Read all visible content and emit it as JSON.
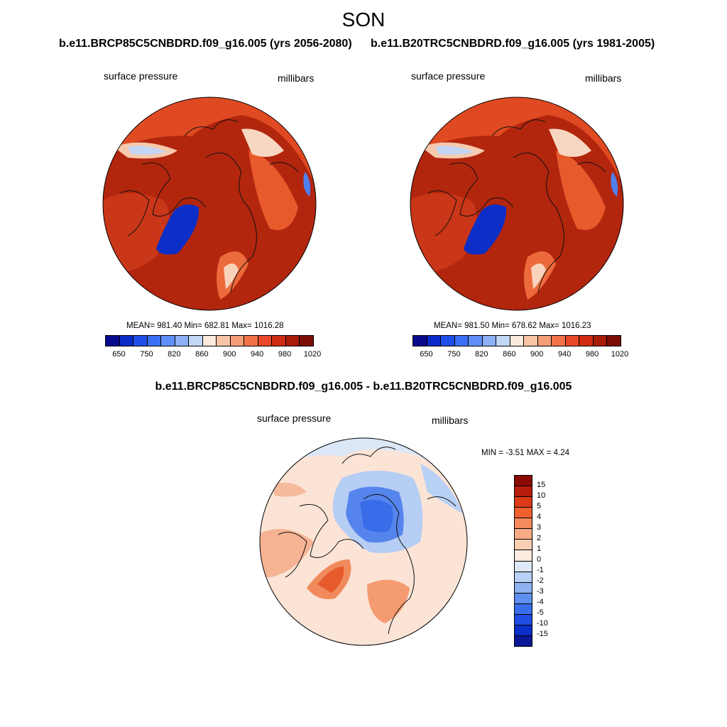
{
  "title": "SON",
  "panels": [
    {
      "title": "b.e11.BRCP85C5CNBDRD.f09_g16.005 (yrs 2056-2080)",
      "var_label": "surface pressure",
      "units_label": "millibars",
      "stats": "MEAN= 981.40  Min= 682.81  Max= 1016.28"
    },
    {
      "title": "b.e11.B20TRC5CNBDRD.f09_g16.005 (yrs 1981-2005)",
      "var_label": "surface pressure",
      "units_label": "millibars",
      "stats": "MEAN= 981.50  Min= 678.62  Max= 1016.23"
    }
  ],
  "abs_colorbar": {
    "colors": [
      "#0a0a8c",
      "#0b2bc9",
      "#1f4fe8",
      "#3b6ff5",
      "#5f8ef7",
      "#8db0f6",
      "#c2d6f5",
      "#fbe9dc",
      "#f8c4a6",
      "#f59d76",
      "#f27348",
      "#e9492a",
      "#cf2c13",
      "#a81c0a",
      "#7a0d04"
    ],
    "ticks": [
      "650",
      "750",
      "820",
      "860",
      "900",
      "940",
      "980",
      "1020"
    ]
  },
  "diff": {
    "title": "b.e11.BRCP85C5CNBDRD.f09_g16.005 - b.e11.B20TRC5CNBDRD.f09_g16.005",
    "var_label": "surface pressure",
    "units_label": "millibars",
    "minmax": "MIN =  -3.51 MAX =   4.24"
  },
  "diff_colorbar": {
    "colors_top_to_bottom": [
      "#8b0a05",
      "#b81c0c",
      "#dc3a18",
      "#f0602f",
      "#f58a5d",
      "#f7ab86",
      "#f9cfb3",
      "#fbeadf",
      "#dde9f7",
      "#b9d0f5",
      "#8fb2f3",
      "#5f8ff0",
      "#3a6ded",
      "#1f4de3",
      "#0a2fc8",
      "#0a1796"
    ],
    "ticks": [
      "15",
      "10",
      "5",
      "4",
      "3",
      "2",
      "1",
      "0",
      "-1",
      "-2",
      "-3",
      "-4",
      "-5",
      "-10",
      "-15"
    ]
  }
}
